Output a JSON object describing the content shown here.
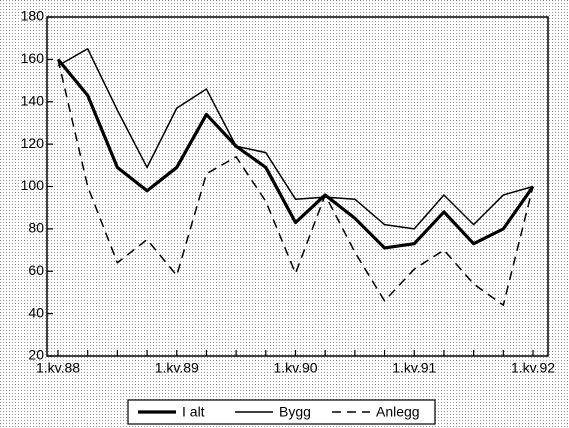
{
  "chart_data": {
    "type": "line",
    "categories": [
      "1.kv.88",
      null,
      null,
      null,
      "1.kv.89",
      null,
      null,
      null,
      "1.kv.90",
      null,
      null,
      null,
      "1.kv.91",
      null,
      null,
      null,
      "1.kv.92"
    ],
    "series": [
      {
        "name": "I alt",
        "color": "#000000",
        "style": "thick",
        "values": [
          160,
          143,
          109,
          98,
          109,
          134,
          119,
          109,
          83,
          96,
          85,
          71,
          73,
          88,
          73,
          80,
          100
        ]
      },
      {
        "name": "Bygg",
        "color": "#000000",
        "style": "solid",
        "values": [
          157,
          165,
          136,
          109,
          137,
          146,
          119,
          116,
          94,
          95,
          94,
          82,
          80,
          96,
          82,
          96,
          100
        ]
      },
      {
        "name": "Anlegg",
        "color": "#000000",
        "style": "dashed",
        "values": [
          160,
          100,
          64,
          75,
          58,
          106,
          114,
          93,
          59,
          96,
          69,
          46,
          61,
          70,
          54,
          44,
          100
        ]
      }
    ],
    "ylim": [
      20,
      180
    ],
    "yticks": [
      20,
      40,
      60,
      80,
      100,
      120,
      140,
      160,
      180
    ],
    "legend": "bottom"
  }
}
